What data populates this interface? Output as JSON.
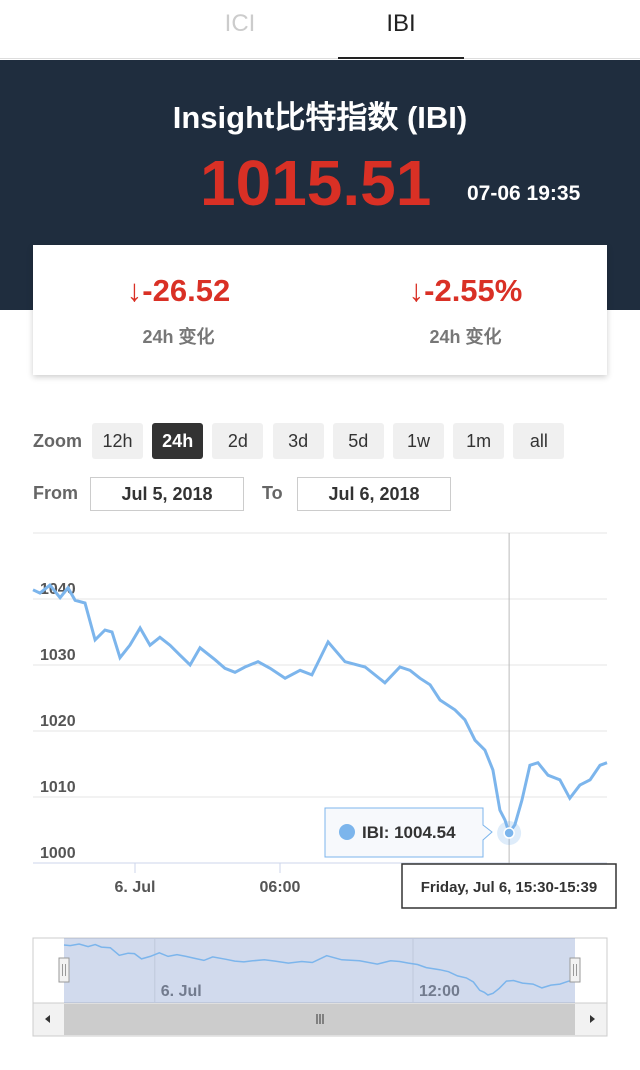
{
  "tabs": [
    "ICI",
    "IBI"
  ],
  "header": {
    "title": "Insight比特指数 (IBI)",
    "price": "1015.51",
    "time": "07-06 19:35"
  },
  "stats": [
    {
      "value": "↓-26.52",
      "label": "24h 变化"
    },
    {
      "value": "↓-2.55%",
      "label": "24h 变化"
    }
  ],
  "zoom": {
    "label": "Zoom",
    "buttons": [
      "12h",
      "24h",
      "2d",
      "3d",
      "5d",
      "1w",
      "1m",
      "all"
    ],
    "selected": 1
  },
  "range": {
    "from_label": "From",
    "from": "Jul 5, 2018",
    "to_label": "To",
    "to": "Jul 6, 2018"
  },
  "chart_data": {
    "type": "line",
    "x": [
      -4.22,
      -3.93,
      -3.52,
      -3.1,
      -2.77,
      -2.48,
      -2.07,
      -1.65,
      -1.24,
      -0.95,
      -0.62,
      -0.21,
      0.21,
      0.62,
      1.03,
      1.45,
      1.86,
      2.28,
      2.69,
      3.31,
      3.72,
      4.14,
      4.55,
      5.09,
      5.59,
      6.21,
      6.83,
      7.32,
      7.99,
      8.69,
      9.52,
      10.34,
      10.96,
      11.38,
      11.79,
      12.21,
      12.62,
      13.24,
      13.65,
      14.07,
      14.48,
      14.81,
      15.1,
      15.31,
      15.48,
      15.72,
      16.01,
      16.34,
      16.67,
      17.09,
      17.58,
      17.99,
      18.41,
      18.83,
      19.24,
      19.53
    ],
    "series": [
      {
        "name": "IBI",
        "color": "#7cb5ec",
        "values": [
          1041.4,
          1040.9,
          1042.1,
          1040.2,
          1041.7,
          1039.8,
          1039.4,
          1033.8,
          1035.3,
          1035.0,
          1031.1,
          1033.0,
          1035.6,
          1033.0,
          1034.2,
          1033.0,
          1031.5,
          1030.0,
          1032.6,
          1030.8,
          1029.5,
          1028.9,
          1029.7,
          1030.5,
          1029.5,
          1028.0,
          1029.2,
          1028.5,
          1033.5,
          1030.5,
          1029.7,
          1027.3,
          1029.7,
          1029.2,
          1028.0,
          1027.0,
          1024.7,
          1023.2,
          1021.7,
          1018.6,
          1017.1,
          1014.1,
          1008.0,
          1006.5,
          1004.54,
          1005.8,
          1009.5,
          1014.8,
          1015.2,
          1013.3,
          1012.6,
          1009.8,
          1011.8,
          1012.6,
          1014.8,
          1015.2
        ]
      }
    ],
    "xlim": [
      -4.22,
      19.53
    ],
    "xticks": [
      {
        "value": 0,
        "label": "6. Jul"
      },
      {
        "value": 6,
        "label": "06:00"
      }
    ],
    "ylim": [
      1000,
      1050
    ],
    "yticks": [
      1000,
      1010,
      1020,
      1030,
      1040
    ],
    "grid": true,
    "tooltip": {
      "label": "IBI: 1004.54",
      "time": "Friday, Jul 6, 15:30-15:39",
      "index": 44
    },
    "navigator_ticks": [
      {
        "value": 0,
        "label": "6. Jul"
      },
      {
        "value": 12,
        "label": "12:00"
      }
    ]
  }
}
